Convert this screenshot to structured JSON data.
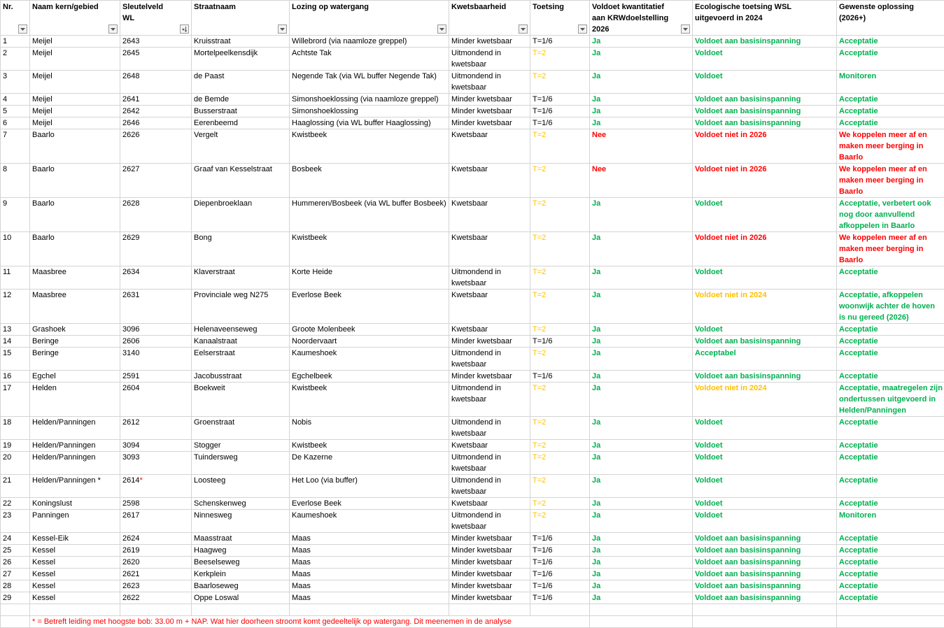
{
  "headers": [
    {
      "label": "Nr.",
      "filter": "dropdown"
    },
    {
      "label": "Naam kern/gebied",
      "filter": "dropdown"
    },
    {
      "label": "Sleutelveld WL",
      "filter": "sorted"
    },
    {
      "label": "Straatnaam",
      "filter": "dropdown"
    },
    {
      "label": "Lozing op watergang",
      "filter": "dropdown"
    },
    {
      "label": "Kwetsbaarheid",
      "filter": "dropdown"
    },
    {
      "label": "Toetsing",
      "filter": "dropdown"
    },
    {
      "label": "Voldoet kwantitatief aan KRWdoelstelling 2026",
      "filter": "dropdown"
    },
    {
      "label": "Ecologische toetsing WSL uitgevoerd in 2024",
      "filter": "none"
    },
    {
      "label": "Gewenste oplossing (2026+)",
      "filter": "none"
    }
  ],
  "rows": [
    {
      "nr": "1",
      "kern": "Meijel",
      "wl": "2643",
      "straat": "Kruisstraat",
      "lozing": "Willebrord (via naamloze greppel)",
      "kwets": "Minder kwetsbaar",
      "toets": "T=1/6",
      "krw": "Ja",
      "eco": "Voldoet aan basisinspanning",
      "opl": "Acceptatie"
    },
    {
      "nr": "2",
      "kern": "Meijel",
      "wl": "2645",
      "straat": "Mortelpeelkensdijk",
      "lozing": "Achtste Tak",
      "kwets": "Uitmondend in kwetsbaar",
      "toets": "T=2",
      "krw": "Ja",
      "eco": "Voldoet",
      "opl": "Acceptatie"
    },
    {
      "nr": "3",
      "kern": "Meijel",
      "wl": "2648",
      "straat": "de Paast",
      "lozing": "Negende Tak (via WL buffer Negende Tak)",
      "kwets": "Uitmondend in kwetsbaar",
      "toets": "T=2",
      "krw": "Ja",
      "eco": "Voldoet",
      "opl": "Monitoren"
    },
    {
      "nr": "4",
      "kern": "Meijel",
      "wl": "2641",
      "straat": "de Bemde",
      "lozing": "Simonshoeklossing (via naamloze greppel)",
      "kwets": "Minder kwetsbaar",
      "toets": "T=1/6",
      "krw": "Ja",
      "eco": "Voldoet aan basisinspanning",
      "opl": "Acceptatie"
    },
    {
      "nr": "5",
      "kern": "Meijel",
      "wl": "2642",
      "straat": "Busserstraat",
      "lozing": "Simonshoeklossing",
      "kwets": "Minder kwetsbaar",
      "toets": "T=1/6",
      "krw": "Ja",
      "eco": "Voldoet aan basisinspanning",
      "opl": "Acceptatie"
    },
    {
      "nr": "6",
      "kern": "Meijel",
      "wl": "2646",
      "straat": "Eerenbeemd",
      "lozing": "Haaglossing (via WL buffer Haaglossing)",
      "kwets": "Minder kwetsbaar",
      "toets": "T=1/6",
      "krw": "Ja",
      "eco": "Voldoet aan basisinspanning",
      "opl": "Acceptatie"
    },
    {
      "nr": "7",
      "kern": "Baarlo",
      "wl": "2626",
      "straat": "Vergelt",
      "lozing": "Kwistbeek",
      "kwets": "Kwetsbaar",
      "toets": "T=2",
      "krw": "Nee",
      "eco": "Voldoet niet in 2026",
      "opl": "We koppelen meer af en maken meer berging in Baarlo"
    },
    {
      "nr": "8",
      "kern": "Baarlo",
      "wl": "2627",
      "straat": "Graaf van Kesselstraat",
      "lozing": "Bosbeek",
      "kwets": "Kwetsbaar",
      "toets": "T=2",
      "krw": "Nee",
      "eco": "Voldoet niet in 2026",
      "opl": "We koppelen meer af en maken meer berging in Baarlo"
    },
    {
      "nr": "9",
      "kern": "Baarlo",
      "wl": "2628",
      "straat": "Diepenbroeklaan",
      "lozing": "Hummeren/Bosbeek (via WL buffer Bosbeek)",
      "kwets": "Kwetsbaar",
      "toets": "T=2",
      "krw": "Ja",
      "eco": "Voldoet",
      "opl": "Acceptatie, verbetert ook nog door aanvullend afkoppelen in Baarlo"
    },
    {
      "nr": "10",
      "kern": "Baarlo",
      "wl": "2629",
      "straat": "Bong",
      "lozing": "Kwistbeek",
      "kwets": "Kwetsbaar",
      "toets": "T=2",
      "krw": "Ja",
      "eco": "Voldoet niet in 2026",
      "opl": "We koppelen meer af en maken meer berging in Baarlo"
    },
    {
      "nr": "11",
      "kern": "Maasbree",
      "wl": "2634",
      "straat": "Klaverstraat",
      "lozing": "Korte Heide",
      "kwets": "Uitmondend in kwetsbaar",
      "toets": "T=2",
      "krw": "Ja",
      "eco": "Voldoet",
      "opl": "Acceptatie"
    },
    {
      "nr": "12",
      "kern": "Maasbree",
      "wl": "2631",
      "straat": "Provinciale weg N275",
      "lozing": "Everlose Beek",
      "kwets": "Kwetsbaar",
      "toets": "T=2",
      "krw": "Ja",
      "eco": "Voldoet niet in 2024",
      "opl": "Acceptatie, afkoppelen woonwijk achter de hoven is nu gereed (2026)"
    },
    {
      "nr": "13",
      "kern": "Grashoek",
      "wl": "3096",
      "straat": "Helenaveenseweg",
      "lozing": "Groote Molenbeek",
      "kwets": "Kwetsbaar",
      "toets": "T=2",
      "krw": "Ja",
      "eco": "Voldoet",
      "opl": "Acceptatie"
    },
    {
      "nr": "14",
      "kern": "Beringe",
      "wl": "2606",
      "straat": "Kanaalstraat",
      "lozing": "Noordervaart",
      "kwets": "Minder kwetsbaar",
      "toets": "T=1/6",
      "krw": "Ja",
      "eco": "Voldoet aan basisinspanning",
      "opl": "Acceptatie"
    },
    {
      "nr": "15",
      "kern": "Beringe",
      "wl": "3140",
      "straat": "Eelserstraat",
      "lozing": "Kaumeshoek",
      "kwets": "Uitmondend in kwetsbaar",
      "toets": "T=2",
      "krw": "Ja",
      "eco": "Acceptabel",
      "opl": "Acceptatie"
    },
    {
      "nr": "16",
      "kern": "Egchel",
      "wl": "2591",
      "straat": "Jacobusstraat",
      "lozing": "Egchelbeek",
      "kwets": "Minder kwetsbaar",
      "toets": "T=1/6",
      "krw": "Ja",
      "eco": "Voldoet aan basisinspanning",
      "opl": "Acceptatie"
    },
    {
      "nr": "17",
      "kern": "Helden",
      "wl": "2604",
      "straat": "Boekweit",
      "lozing": "Kwistbeek",
      "kwets": "Uitmondend in kwetsbaar",
      "toets": "T=2",
      "krw": "Ja",
      "eco": "Voldoet niet in 2024",
      "opl": "Acceptatie, maatregelen zijn ondertussen uitgevoerd in Helden/Panningen"
    },
    {
      "nr": "18",
      "kern": "Helden/Panningen",
      "wl": "2612",
      "straat": "Groenstraat",
      "lozing": "Nobis",
      "kwets": "Uitmondend in kwetsbaar",
      "toets": "T=2",
      "krw": "Ja",
      "eco": "Voldoet",
      "opl": "Acceptatie"
    },
    {
      "nr": "19",
      "kern": "Helden/Panningen",
      "wl": "3094",
      "straat": "Stogger",
      "lozing": "Kwistbeek",
      "kwets": "Kwetsbaar",
      "toets": "T=2",
      "krw": "Ja",
      "eco": "Voldoet",
      "opl": "Acceptatie"
    },
    {
      "nr": "20",
      "kern": "Helden/Panningen",
      "wl": "3093",
      "straat": "Tuindersweg",
      "lozing": "De Kazerne",
      "kwets": "Uitmondend in kwetsbaar",
      "toets": "T=2",
      "krw": "Ja",
      "eco": "Voldoet",
      "opl": "Acceptatie"
    },
    {
      "nr": "21",
      "kern": "Helden/Panningen *",
      "wl": "2614",
      "wl_mark": "*",
      "straat": "Loosteeg",
      "lozing": "Het Loo (via buffer)",
      "kwets": "Uitmondend in kwetsbaar",
      "toets": "T=2",
      "krw": "Ja",
      "eco": "Voldoet",
      "opl": "Acceptatie"
    },
    {
      "nr": "22",
      "kern": "Koningslust",
      "wl": "2598",
      "straat": "Schenskenweg",
      "lozing": "Everlose Beek",
      "kwets": "Kwetsbaar",
      "toets": "T=2",
      "krw": "Ja",
      "eco": "Voldoet",
      "opl": "Acceptatie"
    },
    {
      "nr": "23",
      "kern": "Panningen",
      "wl": "2617",
      "straat": "Ninnesweg",
      "lozing": "Kaumeshoek",
      "kwets": "Uitmondend in kwetsbaar",
      "toets": "T=2",
      "krw": "Ja",
      "eco": "Voldoet",
      "opl": "Monitoren"
    },
    {
      "nr": "24",
      "kern": "Kessel-Eik",
      "wl": "2624",
      "straat": "Maasstraat",
      "lozing": "Maas",
      "kwets": "Minder kwetsbaar",
      "toets": "T=1/6",
      "krw": "Ja",
      "eco": "Voldoet aan basisinspanning",
      "opl": "Acceptatie"
    },
    {
      "nr": "25",
      "kern": "Kessel",
      "wl": "2619",
      "straat": "Haagweg",
      "lozing": "Maas",
      "kwets": "Minder kwetsbaar",
      "toets": "T=1/6",
      "krw": "Ja",
      "eco": "Voldoet aan basisinspanning",
      "opl": "Acceptatie"
    },
    {
      "nr": "26",
      "kern": "Kessel",
      "wl": "2620",
      "straat": "Beeselseweg",
      "lozing": "Maas",
      "kwets": "Minder kwetsbaar",
      "toets": "T=1/6",
      "krw": "Ja",
      "eco": "Voldoet aan basisinspanning",
      "opl": "Acceptatie"
    },
    {
      "nr": "27",
      "kern": "Kessel",
      "wl": "2621",
      "straat": "Kerkplein",
      "lozing": "Maas",
      "kwets": "Minder kwetsbaar",
      "toets": "T=1/6",
      "krw": "Ja",
      "eco": "Voldoet aan basisinspanning",
      "opl": "Acceptatie"
    },
    {
      "nr": "28",
      "kern": "Kessel",
      "wl": "2623",
      "straat": "Baarloseweg",
      "lozing": "Maas",
      "kwets": "Minder kwetsbaar",
      "toets": "T=1/6",
      "krw": "Ja",
      "eco": "Voldoet aan basisinspanning",
      "opl": "Acceptatie"
    },
    {
      "nr": "29",
      "kern": "Kessel",
      "wl": "2622",
      "straat": "Oppe Loswal",
      "lozing": "Maas",
      "kwets": "Minder kwetsbaar",
      "toets": "T=1/6",
      "krw": "Ja",
      "eco": "Voldoet aan basisinspanning",
      "opl": "Acceptatie"
    }
  ],
  "footnote": "* = Betreft leiding met hoogste bob: 33.00 m + NAP. Wat hier doorheen stroomt komt gedeeltelijk op watergang. Dit meenemen in de analyse",
  "colors": {
    "green": "#00b050",
    "red": "#ff0000",
    "orange": "#ffc000"
  }
}
